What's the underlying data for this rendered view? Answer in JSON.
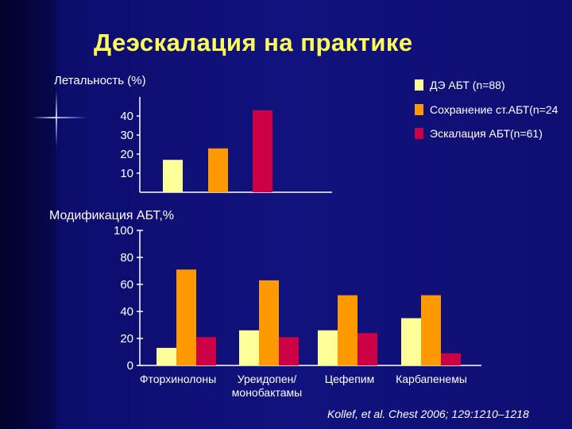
{
  "slide": {
    "title": "Деэскалация на практике",
    "citation": "Kollef, et al. Chest  2006; 129:1210–1218"
  },
  "colors": {
    "series1": "#ffff99",
    "series2": "#ff9900",
    "series3": "#cc0044",
    "title": "#ffff55",
    "background": "#12127e"
  },
  "chart_data": [
    {
      "type": "bar",
      "title": "Летальность (%)",
      "categories": [
        ""
      ],
      "series": [
        {
          "name": "ДЭ  АБТ (n=88)",
          "values": [
            17
          ]
        },
        {
          "name": "Сохранение ст.АБТ(n=24",
          "values": [
            23
          ]
        },
        {
          "name": "Эскалация АБТ(n=61)",
          "values": [
            43
          ]
        }
      ],
      "yticks": [
        10,
        20,
        30,
        40
      ],
      "ylim": [
        0,
        50
      ],
      "legend": "right"
    },
    {
      "type": "bar",
      "title": "Модификация АБТ,%",
      "categories": [
        "Фторхинолоны",
        "Уреидопен/ монобактамы",
        "Цефепим",
        "Карбапенемы"
      ],
      "category_lines": [
        [
          "Фторхинолоны"
        ],
        [
          "Уреидопен/",
          "монобактамы"
        ],
        [
          "Цефепим"
        ],
        [
          "Карбапенемы"
        ]
      ],
      "series": [
        {
          "values": [
            13,
            26,
            26,
            35
          ]
        },
        {
          "values": [
            71,
            63,
            52,
            52
          ]
        },
        {
          "values": [
            21,
            21,
            24,
            9
          ]
        }
      ],
      "yticks": [
        0,
        20,
        40,
        60,
        80,
        100
      ],
      "ylim": [
        0,
        100
      ]
    }
  ]
}
